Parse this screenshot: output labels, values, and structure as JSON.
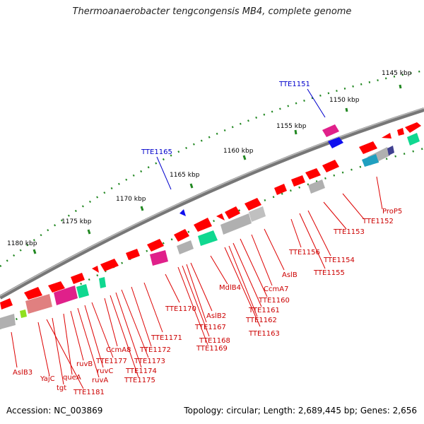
{
  "title": "Thermoanaerobacter tengcongensis MB4, complete genome",
  "footer": {
    "accession": "Accession: NC_003869",
    "summary": "Topology: circular; Length: 2,689,445 bp; Genes: 2,656"
  },
  "scale_labels": [
    "1145 kbp",
    "1150 kbp",
    "1155 kbp",
    "1160 kbp",
    "1165 kbp",
    "1170 kbp",
    "1175 kbp",
    "1180 kbp"
  ],
  "gene_labels_blue": [
    "TTE1151",
    "TTE1165"
  ],
  "gene_labels_red": [
    "ProP5",
    "TTE1152",
    "TTE1153",
    "TTE1154",
    "TTE1155",
    "TTE1156",
    "AslB",
    "CcmA7",
    "TTE1160",
    "TTE1161",
    "TTE1162",
    "TTE1163",
    "MdlB4",
    "AslB2",
    "TTE1167",
    "TTE1168",
    "TTE1169",
    "TTE1170",
    "TTE1171",
    "TTE1172",
    "TTE1173",
    "TTE1174",
    "TTE1175",
    "CcmA8",
    "TTE1177",
    "ruvC",
    "ruvA",
    "ruvB",
    "queA",
    "tgt",
    "YajC",
    "TTE1181",
    "AslB3"
  ],
  "colors": {
    "backbone": "#777777",
    "forward_gene": "#ff0000",
    "pseudo": "#b0b0b0",
    "magenta": "#e0208a",
    "teal": "#10d890",
    "blue": "#1010ee",
    "label_red": "#cc0000",
    "label_blue": "#0000cc",
    "scale_dots": "#228822"
  }
}
